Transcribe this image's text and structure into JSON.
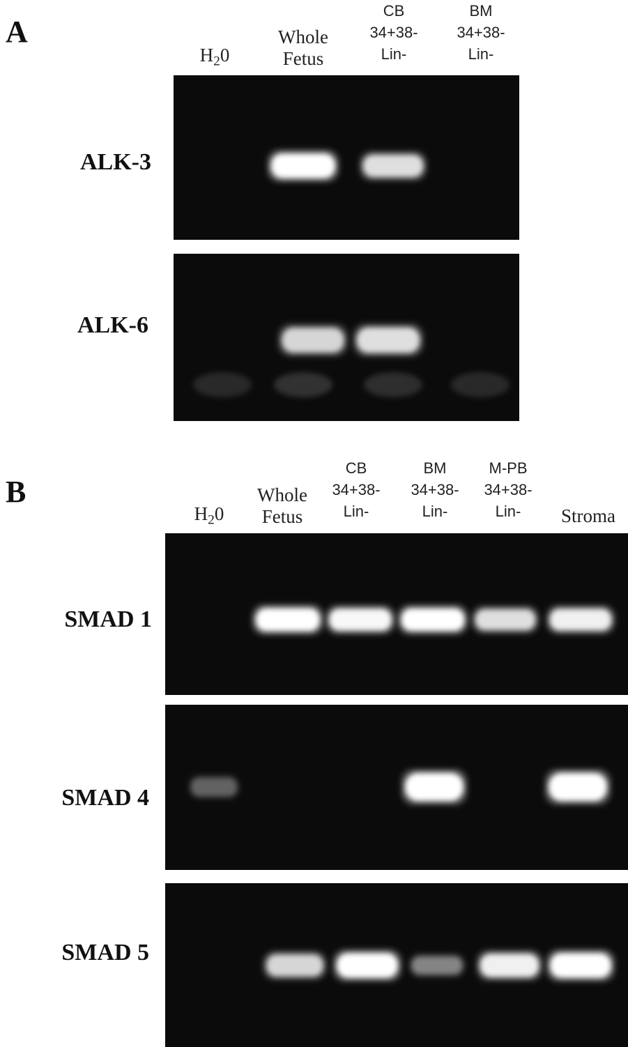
{
  "panels": [
    {
      "letter": "A",
      "lanes": [
        {
          "lines": [
            "H",
            "2",
            "0"
          ],
          "style": "serif-sub"
        },
        {
          "lines": [
            "Whole",
            "Fetus"
          ],
          "style": "serif"
        },
        {
          "lines": [
            "CB",
            "34+38-",
            "Lin-"
          ],
          "style": "sans"
        },
        {
          "lines": [
            "BM",
            "34+38-",
            "Lin-"
          ],
          "style": "sans"
        }
      ],
      "gels": [
        {
          "gene": "ALK-3",
          "band_intensity": [
            0.0,
            1.0,
            0.75,
            0.0
          ]
        },
        {
          "gene": "ALK-6",
          "band_intensity": [
            0.0,
            0.7,
            0.75,
            0.0
          ]
        }
      ]
    },
    {
      "letter": "B",
      "lanes": [
        {
          "lines": [
            "H",
            "2",
            "0"
          ],
          "style": "serif-sub"
        },
        {
          "lines": [
            "Whole",
            "Fetus"
          ],
          "style": "serif"
        },
        {
          "lines": [
            "CB",
            "34+38-",
            "Lin-"
          ],
          "style": "sans"
        },
        {
          "lines": [
            "BM",
            "34+38-",
            "Lin-"
          ],
          "style": "sans"
        },
        {
          "lines": [
            "M-PB",
            "34+38-",
            "Lin-"
          ],
          "style": "sans"
        },
        {
          "lines": [
            "Stroma"
          ],
          "style": "serif"
        }
      ],
      "gels": [
        {
          "gene": "SMAD 1",
          "band_intensity": [
            0.0,
            1.0,
            0.9,
            0.95,
            0.75,
            0.85
          ]
        },
        {
          "gene": "SMAD 4",
          "band_intensity": [
            0.15,
            0.0,
            0.0,
            1.0,
            0.0,
            1.0
          ]
        },
        {
          "gene": "SMAD 5",
          "band_intensity": [
            0.0,
            0.7,
            1.0,
            0.3,
            0.85,
            1.0
          ]
        }
      ]
    }
  ]
}
